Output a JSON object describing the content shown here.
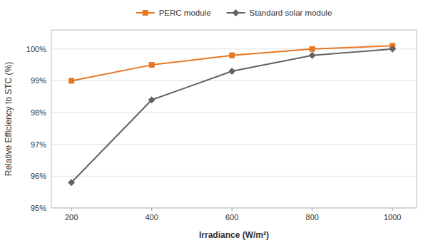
{
  "chart_data": {
    "type": "line",
    "x": [
      200,
      400,
      600,
      800,
      1000
    ],
    "series": [
      {
        "name": "PERC module",
        "color": "#E87722",
        "marker": "square",
        "values": [
          99.0,
          99.5,
          99.8,
          100.0,
          100.1
        ]
      },
      {
        "name": "Standard solar module",
        "color": "#636363",
        "marker": "diamond",
        "values": [
          95.8,
          98.4,
          99.3,
          99.8,
          100.0
        ]
      }
    ],
    "xlabel": "Irradiance (W/m²)",
    "ylabel": "Relative Efficiency to STC (%)",
    "xlim": [
      150,
      1060
    ],
    "ylim": [
      95.0,
      100.6
    ],
    "xticks": [
      200,
      400,
      600,
      800,
      1000
    ],
    "yticks": [
      {
        "value": 95,
        "label": "95%"
      },
      {
        "value": 96,
        "label": "96%"
      },
      {
        "value": 97,
        "label": "97%"
      },
      {
        "value": 98,
        "label": "98%"
      },
      {
        "value": 99,
        "label": "99%"
      },
      {
        "value": 100,
        "label": "100%"
      }
    ],
    "grid": true,
    "legend": "top"
  }
}
